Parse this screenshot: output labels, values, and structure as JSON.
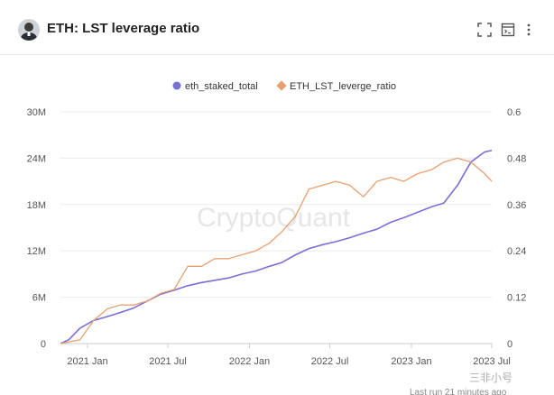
{
  "header": {
    "title": "ETH: LST leverage ratio",
    "icons": [
      "fullscreen-icon",
      "embed-icon",
      "more-icon"
    ]
  },
  "footer": {
    "watermark": "三非小号",
    "last_run": "Last run 21 minutes ago"
  },
  "chart_data": {
    "type": "line",
    "watermark": "CryptoQuant",
    "legend": [
      {
        "name": "eth_staked_total",
        "color": "#7b6fd6",
        "axis": "left"
      },
      {
        "name": "ETH_LST_leverge_ratio",
        "color": "#e8a070",
        "axis": "right"
      }
    ],
    "x_domain": [
      "2020-11-01",
      "2023-07-01"
    ],
    "x_ticks": [
      {
        "date": "2021-01-01",
        "label": "2021 Jan"
      },
      {
        "date": "2021-07-01",
        "label": "2021 Jul"
      },
      {
        "date": "2022-01-01",
        "label": "2022 Jan"
      },
      {
        "date": "2022-07-01",
        "label": "2022 Jul"
      },
      {
        "date": "2023-01-01",
        "label": "2023 Jan"
      },
      {
        "date": "2023-07-01",
        "label": "2023 Jul"
      }
    ],
    "y_left": {
      "min": 0,
      "max": 30000000,
      "ticks": [
        0,
        6000000,
        12000000,
        18000000,
        24000000,
        30000000
      ],
      "tick_labels": [
        "0",
        "6M",
        "12M",
        "18M",
        "24M",
        "30M"
      ]
    },
    "y_right": {
      "min": 0,
      "max": 0.6,
      "ticks": [
        0,
        0.12,
        0.24,
        0.36,
        0.48,
        0.6
      ],
      "tick_labels": [
        "0",
        "0.12",
        "0.24",
        "0.36",
        "0.48",
        "0.6"
      ]
    },
    "series": [
      {
        "name": "eth_staked_total",
        "axis": "left",
        "x": [
          "2020-11-01",
          "2020-11-20",
          "2020-12-15",
          "2021-01-15",
          "2021-02-15",
          "2021-03-15",
          "2021-04-15",
          "2021-05-15",
          "2021-06-15",
          "2021-07-15",
          "2021-08-15",
          "2021-09-15",
          "2021-10-15",
          "2021-11-15",
          "2021-12-15",
          "2022-01-15",
          "2022-02-15",
          "2022-03-15",
          "2022-04-15",
          "2022-05-15",
          "2022-06-15",
          "2022-07-15",
          "2022-08-15",
          "2022-09-15",
          "2022-10-15",
          "2022-11-15",
          "2022-12-15",
          "2023-01-15",
          "2023-02-15",
          "2023-03-15",
          "2023-04-15",
          "2023-05-15",
          "2023-06-15",
          "2023-07-01"
        ],
        "values": [
          0,
          500000,
          2000000,
          3000000,
          3500000,
          4000000,
          4600000,
          5500000,
          6400000,
          6900000,
          7500000,
          7900000,
          8200000,
          8500000,
          9000000,
          9400000,
          10000000,
          10500000,
          11500000,
          12300000,
          12800000,
          13200000,
          13700000,
          14300000,
          14800000,
          15700000,
          16300000,
          17000000,
          17700000,
          18200000,
          20500000,
          23500000,
          24800000,
          25000000
        ]
      },
      {
        "name": "ETH_LST_leverge_ratio",
        "axis": "right",
        "x": [
          "2020-11-01",
          "2020-12-15",
          "2021-01-15",
          "2021-02-15",
          "2021-03-15",
          "2021-04-15",
          "2021-05-15",
          "2021-06-15",
          "2021-07-15",
          "2021-08-15",
          "2021-09-15",
          "2021-10-15",
          "2021-11-15",
          "2021-12-15",
          "2022-01-15",
          "2022-02-15",
          "2022-03-15",
          "2022-04-15",
          "2022-05-15",
          "2022-06-15",
          "2022-07-15",
          "2022-08-15",
          "2022-09-15",
          "2022-10-15",
          "2022-11-15",
          "2022-12-15",
          "2023-01-15",
          "2023-02-15",
          "2023-03-15",
          "2023-04-15",
          "2023-05-15",
          "2023-06-15",
          "2023-07-01"
        ],
        "values": [
          0,
          0.01,
          0.06,
          0.09,
          0.1,
          0.1,
          0.11,
          0.13,
          0.14,
          0.2,
          0.2,
          0.22,
          0.22,
          0.23,
          0.24,
          0.26,
          0.29,
          0.33,
          0.4,
          0.41,
          0.42,
          0.41,
          0.38,
          0.42,
          0.43,
          0.42,
          0.44,
          0.45,
          0.47,
          0.48,
          0.47,
          0.44,
          0.42
        ]
      }
    ]
  }
}
